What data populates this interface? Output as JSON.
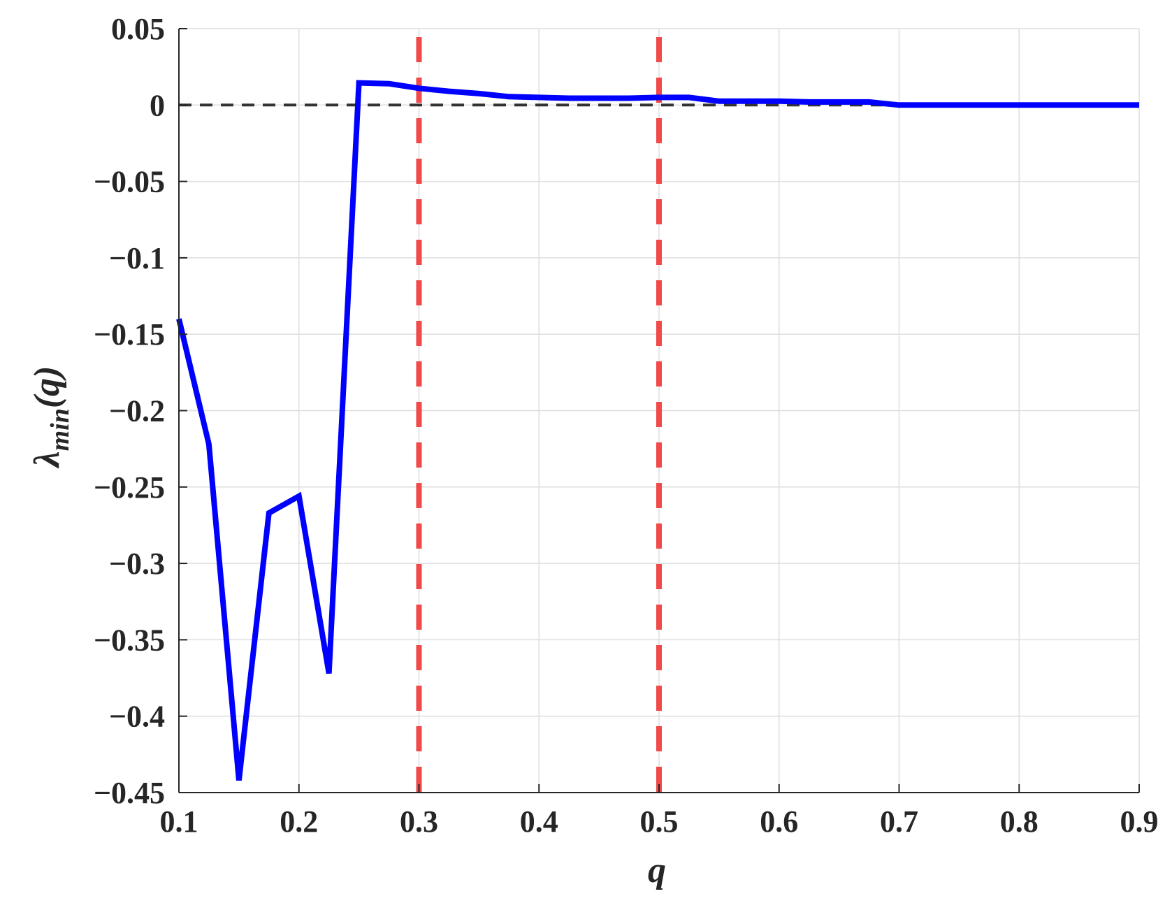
{
  "chart_data": {
    "type": "line",
    "xlabel": "q",
    "ylabel": {
      "base": "λ",
      "subscript": "min",
      "suffix": "(q)"
    },
    "xlim": [
      0.1,
      0.9
    ],
    "ylim": [
      -0.45,
      0.05
    ],
    "xticks": [
      0.1,
      0.2,
      0.3,
      0.4,
      0.5,
      0.6,
      0.7,
      0.8,
      0.9
    ],
    "xtick_labels": [
      "0.1",
      "0.2",
      "0.3",
      "0.4",
      "0.5",
      "0.6",
      "0.7",
      "0.8",
      "0.9"
    ],
    "yticks": [
      0.05,
      0,
      -0.05,
      -0.1,
      -0.15,
      -0.2,
      -0.25,
      -0.3,
      -0.35,
      -0.4,
      -0.45
    ],
    "ytick_labels": [
      "0.05",
      "0",
      "−0.05",
      "−0.1",
      "−0.15",
      "−0.2",
      "−0.25",
      "−0.3",
      "−0.35",
      "−0.4",
      "−0.45"
    ],
    "grid": true,
    "series": [
      {
        "color": "#0000ff",
        "x": [
          0.1,
          0.125,
          0.15,
          0.175,
          0.2,
          0.225,
          0.25,
          0.275,
          0.3,
          0.325,
          0.35,
          0.375,
          0.4,
          0.425,
          0.45,
          0.475,
          0.5,
          0.525,
          0.55,
          0.575,
          0.6,
          0.625,
          0.65,
          0.675,
          0.7,
          0.725,
          0.75,
          0.775,
          0.8,
          0.825,
          0.85,
          0.875,
          0.9
        ],
        "y": [
          -0.14,
          -0.222,
          -0.442,
          -0.267,
          -0.256,
          -0.372,
          0.0145,
          0.014,
          0.011,
          0.009,
          0.0075,
          0.0055,
          0.005,
          0.0045,
          0.0045,
          0.0045,
          0.005,
          0.005,
          0.0025,
          0.0025,
          0.0025,
          0.002,
          0.002,
          0.002,
          0.0,
          0.0,
          0.0,
          0.0,
          0.0,
          0.0,
          0.0,
          0.0,
          0.0
        ]
      }
    ],
    "reference_lines": [
      {
        "orientation": "horizontal",
        "value": 0,
        "color": "#333333",
        "style": "dashed"
      },
      {
        "orientation": "vertical",
        "value": 0.3,
        "color": "#f04a4a",
        "style": "dashed"
      },
      {
        "orientation": "vertical",
        "value": 0.5,
        "color": "#f04a4a",
        "style": "dashed"
      }
    ]
  }
}
